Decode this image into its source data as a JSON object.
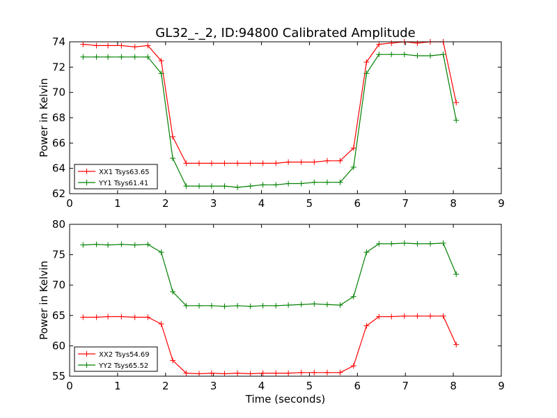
{
  "figure": {
    "title": "GL32_-_2, ID:94800 Calibrated Amplitude",
    "xlabel": "Time (seconds)"
  },
  "colors": {
    "red": "#ff0000",
    "green": "#008000"
  },
  "chart_data": [
    {
      "type": "line",
      "title": "GL32_-_2, ID:94800 Calibrated Amplitude",
      "xlabel": "",
      "ylabel": "Power in Kelvin",
      "xlim": [
        0,
        9
      ],
      "ylim": [
        62,
        74
      ],
      "xticks": [
        0,
        1,
        2,
        3,
        4,
        5,
        6,
        7,
        8,
        9
      ],
      "yticks": [
        62,
        64,
        66,
        68,
        70,
        72,
        74
      ],
      "grid": false,
      "legend_position": "lower-left",
      "x": [
        0.28,
        0.56,
        0.8,
        1.08,
        1.36,
        1.63,
        1.91,
        2.15,
        2.43,
        2.7,
        2.96,
        3.23,
        3.5,
        3.77,
        4.03,
        4.3,
        4.56,
        4.83,
        5.1,
        5.37,
        5.64,
        5.92,
        6.19,
        6.45,
        6.71,
        6.98,
        7.25,
        7.52,
        7.79,
        8.06
      ],
      "series": [
        {
          "name": "XX1 Tsys63.65",
          "color": "#ff0000",
          "values": [
            73.8,
            73.7,
            73.7,
            73.7,
            73.6,
            73.7,
            72.5,
            66.5,
            64.4,
            64.4,
            64.4,
            64.4,
            64.4,
            64.4,
            64.4,
            64.4,
            64.5,
            64.5,
            64.5,
            64.6,
            64.6,
            65.6,
            72.4,
            73.8,
            73.9,
            74.0,
            73.9,
            74.0,
            74.0,
            69.2
          ]
        },
        {
          "name": "YY1 Tsys61.41",
          "color": "#008000",
          "values": [
            72.8,
            72.8,
            72.8,
            72.8,
            72.8,
            72.8,
            71.5,
            64.8,
            62.6,
            62.6,
            62.6,
            62.6,
            62.5,
            62.6,
            62.7,
            62.7,
            62.8,
            62.8,
            62.9,
            62.9,
            62.9,
            64.1,
            71.5,
            73.0,
            73.0,
            73.0,
            72.9,
            72.9,
            73.0,
            67.8
          ]
        }
      ]
    },
    {
      "type": "line",
      "title": "",
      "xlabel": "Time (seconds)",
      "ylabel": "Power in Kelvin",
      "xlim": [
        0,
        9
      ],
      "ylim": [
        55,
        80
      ],
      "xticks": [
        0,
        1,
        2,
        3,
        4,
        5,
        6,
        7,
        8,
        9
      ],
      "yticks": [
        55,
        60,
        65,
        70,
        75,
        80
      ],
      "grid": false,
      "legend_position": "lower-left",
      "x": [
        0.28,
        0.56,
        0.8,
        1.08,
        1.36,
        1.63,
        1.91,
        2.15,
        2.43,
        2.7,
        2.96,
        3.23,
        3.5,
        3.77,
        4.03,
        4.3,
        4.56,
        4.83,
        5.1,
        5.37,
        5.64,
        5.92,
        6.19,
        6.45,
        6.71,
        6.98,
        7.25,
        7.52,
        7.79,
        8.06
      ],
      "series": [
        {
          "name": "XX2 Tsys54.69",
          "color": "#ff0000",
          "values": [
            64.7,
            64.7,
            64.8,
            64.8,
            64.7,
            64.7,
            63.6,
            57.6,
            55.5,
            55.4,
            55.5,
            55.4,
            55.5,
            55.4,
            55.5,
            55.5,
            55.5,
            55.6,
            55.6,
            55.6,
            55.6,
            56.7,
            63.3,
            64.8,
            64.8,
            64.9,
            64.9,
            64.9,
            64.9,
            60.2
          ]
        },
        {
          "name": "YY2 Tsys65.52",
          "color": "#008000",
          "values": [
            76.6,
            76.7,
            76.6,
            76.7,
            76.6,
            76.7,
            75.4,
            68.9,
            66.6,
            66.6,
            66.6,
            66.5,
            66.6,
            66.5,
            66.6,
            66.6,
            66.7,
            66.8,
            66.9,
            66.8,
            66.7,
            68.1,
            75.4,
            76.8,
            76.8,
            76.9,
            76.8,
            76.8,
            76.9,
            71.8
          ]
        }
      ]
    }
  ]
}
